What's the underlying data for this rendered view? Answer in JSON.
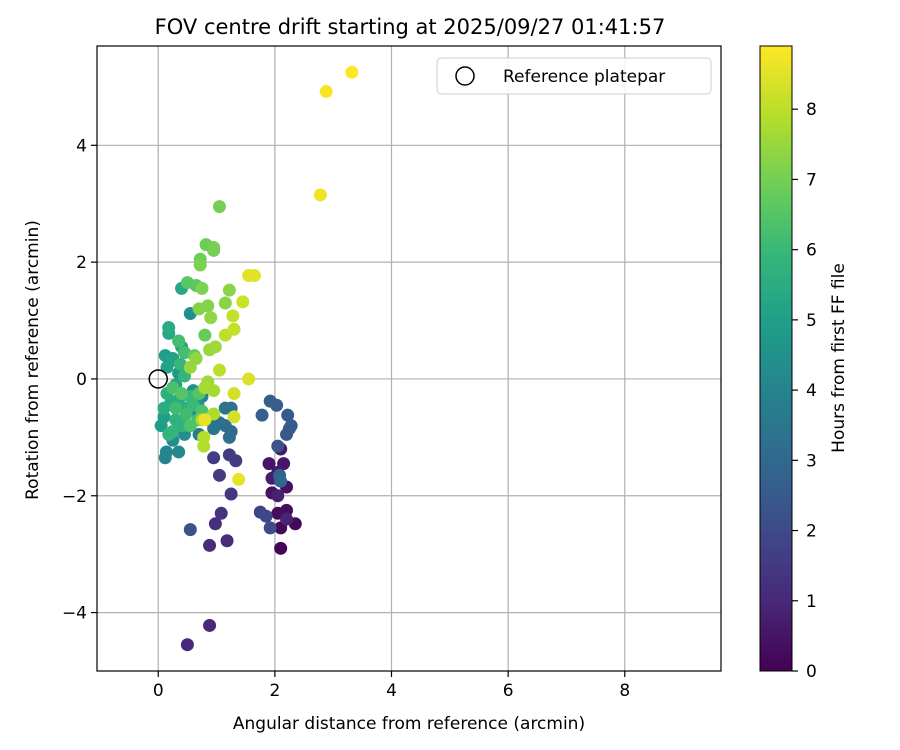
{
  "chart_data": {
    "type": "scatter",
    "title": "FOV centre drift starting at 2025/09/27 01:41:57",
    "xlabel": "Angular distance from reference (arcmin)",
    "ylabel": "Rotation from reference (arcmin)",
    "xlim": [
      -1.05,
      9.65
    ],
    "ylim": [
      -5.0,
      5.7
    ],
    "xticks": [
      0,
      2,
      4,
      6,
      8
    ],
    "xtick_labels": [
      "0",
      "2",
      "4",
      "6",
      "8"
    ],
    "yticks": [
      -4,
      -2,
      0,
      2,
      4
    ],
    "ytick_labels": [
      "−4",
      "−2",
      "0",
      "2",
      "4"
    ],
    "grid": true,
    "legend": {
      "position": "top-right",
      "entries": [
        "Reference platepar"
      ]
    },
    "reference_point": {
      "x": 0,
      "y": 0
    },
    "colorbar": {
      "label": "Hours from first FF file",
      "range": [
        0,
        8.9
      ],
      "ticks": [
        0,
        1,
        2,
        3,
        4,
        5,
        6,
        7,
        8
      ],
      "tick_labels": [
        "0",
        "1",
        "2",
        "3",
        "4",
        "5",
        "6",
        "7",
        "8"
      ],
      "colormap": "viridis",
      "colormap_stops": [
        "#440154",
        "#482878",
        "#3e4a89",
        "#31688e",
        "#26828e",
        "#1f9e89",
        "#35b779",
        "#6ece58",
        "#b5de2b",
        "#fde725"
      ]
    },
    "series": [
      {
        "name": "FF files",
        "points": [
          {
            "x": 2.1,
            "y": -2.9,
            "t": 0.1
          },
          {
            "x": 2.35,
            "y": -2.48,
            "t": 0.2
          },
          {
            "x": 2.1,
            "y": -2.55,
            "t": 0.2
          },
          {
            "x": 2.2,
            "y": -2.25,
            "t": 0.3
          },
          {
            "x": 2.05,
            "y": -2.3,
            "t": 0.3
          },
          {
            "x": 1.95,
            "y": -1.95,
            "t": 0.4
          },
          {
            "x": 2.2,
            "y": -1.85,
            "t": 0.4
          },
          {
            "x": 1.9,
            "y": -1.45,
            "t": 0.5
          },
          {
            "x": 2.15,
            "y": -1.45,
            "t": 0.5
          },
          {
            "x": 2.1,
            "y": -1.2,
            "t": 0.6
          },
          {
            "x": 2.05,
            "y": -1.6,
            "t": 0.6
          },
          {
            "x": 1.95,
            "y": -1.7,
            "t": 0.7
          },
          {
            "x": 2.05,
            "y": -2.0,
            "t": 0.8
          },
          {
            "x": 2.2,
            "y": -2.4,
            "t": 0.9
          },
          {
            "x": 0.5,
            "y": -4.55,
            "t": 1.0
          },
          {
            "x": 0.88,
            "y": -4.22,
            "t": 1.0
          },
          {
            "x": 0.88,
            "y": -2.85,
            "t": 1.1
          },
          {
            "x": 1.18,
            "y": -2.77,
            "t": 1.1
          },
          {
            "x": 0.98,
            "y": -2.48,
            "t": 1.2
          },
          {
            "x": 1.08,
            "y": -2.3,
            "t": 1.3
          },
          {
            "x": 1.25,
            "y": -1.97,
            "t": 1.4
          },
          {
            "x": 1.05,
            "y": -1.65,
            "t": 1.5
          },
          {
            "x": 1.33,
            "y": -1.4,
            "t": 1.5
          },
          {
            "x": 0.95,
            "y": -1.35,
            "t": 1.6
          },
          {
            "x": 1.22,
            "y": -1.3,
            "t": 1.6
          },
          {
            "x": 1.75,
            "y": -2.28,
            "t": 1.8
          },
          {
            "x": 1.85,
            "y": -2.35,
            "t": 1.9
          },
          {
            "x": 1.92,
            "y": -2.55,
            "t": 2.0
          },
          {
            "x": 0.55,
            "y": -2.58,
            "t": 2.2
          },
          {
            "x": 2.05,
            "y": -1.15,
            "t": 2.3
          },
          {
            "x": 2.2,
            "y": -0.95,
            "t": 2.4
          },
          {
            "x": 2.25,
            "y": -0.85,
            "t": 2.4
          },
          {
            "x": 2.28,
            "y": -0.8,
            "t": 2.5
          },
          {
            "x": 2.22,
            "y": -0.62,
            "t": 2.5
          },
          {
            "x": 1.92,
            "y": -0.38,
            "t": 2.6
          },
          {
            "x": 2.03,
            "y": -0.45,
            "t": 2.6
          },
          {
            "x": 1.78,
            "y": -0.62,
            "t": 2.7
          },
          {
            "x": 2.08,
            "y": -1.65,
            "t": 2.8
          },
          {
            "x": 2.1,
            "y": -1.75,
            "t": 2.9
          },
          {
            "x": 1.25,
            "y": -0.9,
            "t": 3.0
          },
          {
            "x": 1.15,
            "y": -0.8,
            "t": 3.1
          },
          {
            "x": 1.22,
            "y": -1.0,
            "t": 3.2
          },
          {
            "x": 1.05,
            "y": -0.75,
            "t": 3.2
          },
          {
            "x": 1.25,
            "y": -0.5,
            "t": 3.3
          },
          {
            "x": 1.15,
            "y": -0.5,
            "t": 3.4
          },
          {
            "x": 0.95,
            "y": -0.85,
            "t": 3.5
          },
          {
            "x": 0.7,
            "y": -0.95,
            "t": 3.6
          },
          {
            "x": 0.85,
            "y": -0.7,
            "t": 3.7
          },
          {
            "x": 0.62,
            "y": -0.55,
            "t": 3.8
          },
          {
            "x": 0.75,
            "y": -0.3,
            "t": 3.9
          },
          {
            "x": 0.12,
            "y": -1.35,
            "t": 4.0
          },
          {
            "x": 0.14,
            "y": -1.25,
            "t": 4.1
          },
          {
            "x": 0.35,
            "y": -1.25,
            "t": 4.2
          },
          {
            "x": 0.25,
            "y": -1.05,
            "t": 4.3
          },
          {
            "x": 0.45,
            "y": -0.95,
            "t": 4.4
          },
          {
            "x": 0.55,
            "y": 1.12,
            "t": 4.4
          },
          {
            "x": 0.6,
            "y": -0.2,
            "t": 4.5
          },
          {
            "x": 0.68,
            "y": -0.45,
            "t": 4.6
          },
          {
            "x": 0.8,
            "y": -0.15,
            "t": 4.7
          },
          {
            "x": 0.35,
            "y": 0.1,
            "t": 4.7
          },
          {
            "x": 0.2,
            "y": 0.3,
            "t": 4.8
          },
          {
            "x": 0.05,
            "y": -0.8,
            "t": 4.9
          },
          {
            "x": 0.1,
            "y": -0.65,
            "t": 5.0
          },
          {
            "x": 0.12,
            "y": 0.4,
            "t": 5.0
          },
          {
            "x": 0.15,
            "y": 0.2,
            "t": 5.1
          },
          {
            "x": 0.25,
            "y": 0.35,
            "t": 5.1
          },
          {
            "x": 0.3,
            "y": -0.1,
            "t": 5.2
          },
          {
            "x": 0.4,
            "y": 0.55,
            "t": 5.2
          },
          {
            "x": 0.18,
            "y": 0.78,
            "t": 5.3
          },
          {
            "x": 0.4,
            "y": 1.55,
            "t": 5.3
          },
          {
            "x": 0.18,
            "y": 0.88,
            "t": 5.4
          },
          {
            "x": 0.22,
            "y": -0.4,
            "t": 5.4
          },
          {
            "x": 0.35,
            "y": -0.35,
            "t": 5.5
          },
          {
            "x": 0.1,
            "y": -0.5,
            "t": 5.5
          },
          {
            "x": 0.15,
            "y": -0.25,
            "t": 5.6
          },
          {
            "x": 0.45,
            "y": -0.5,
            "t": 5.6
          },
          {
            "x": 0.3,
            "y": -0.7,
            "t": 5.7
          },
          {
            "x": 0.42,
            "y": -0.8,
            "t": 5.7
          },
          {
            "x": 0.25,
            "y": -0.9,
            "t": 5.8
          },
          {
            "x": 0.18,
            "y": -0.95,
            "t": 5.8
          },
          {
            "x": 0.45,
            "y": 0.05,
            "t": 5.9
          },
          {
            "x": 0.38,
            "y": 0.25,
            "t": 5.9
          },
          {
            "x": 0.55,
            "y": -0.3,
            "t": 6.0
          },
          {
            "x": 0.6,
            "y": -0.45,
            "t": 6.0
          },
          {
            "x": 0.3,
            "y": -0.5,
            "t": 6.1
          },
          {
            "x": 0.48,
            "y": -0.6,
            "t": 6.1
          },
          {
            "x": 0.35,
            "y": 0.65,
            "t": 6.2
          },
          {
            "x": 0.45,
            "y": 0.45,
            "t": 6.2
          },
          {
            "x": 0.25,
            "y": -0.15,
            "t": 6.3
          },
          {
            "x": 0.68,
            "y": -0.7,
            "t": 6.3
          },
          {
            "x": 0.55,
            "y": -0.8,
            "t": 6.4
          },
          {
            "x": 0.75,
            "y": -0.55,
            "t": 6.4
          },
          {
            "x": 0.7,
            "y": -0.25,
            "t": 6.5
          },
          {
            "x": 0.4,
            "y": -0.25,
            "t": 6.5
          },
          {
            "x": 0.5,
            "y": 1.65,
            "t": 6.6
          },
          {
            "x": 0.65,
            "y": 1.6,
            "t": 6.6
          },
          {
            "x": 0.62,
            "y": 0.4,
            "t": 6.7
          },
          {
            "x": 0.8,
            "y": 0.75,
            "t": 6.8
          },
          {
            "x": 0.72,
            "y": 2.05,
            "t": 6.9
          },
          {
            "x": 0.82,
            "y": 2.3,
            "t": 6.9
          },
          {
            "x": 0.95,
            "y": 2.25,
            "t": 7.0
          },
          {
            "x": 0.95,
            "y": 2.2,
            "t": 7.0
          },
          {
            "x": 1.05,
            "y": 2.95,
            "t": 7.0
          },
          {
            "x": 0.72,
            "y": 1.95,
            "t": 7.1
          },
          {
            "x": 0.75,
            "y": 1.55,
            "t": 7.1
          },
          {
            "x": 0.85,
            "y": 1.25,
            "t": 7.2
          },
          {
            "x": 0.7,
            "y": 1.2,
            "t": 7.2
          },
          {
            "x": 1.15,
            "y": 1.3,
            "t": 7.3
          },
          {
            "x": 1.22,
            "y": 1.52,
            "t": 7.3
          },
          {
            "x": 0.9,
            "y": 1.05,
            "t": 7.4
          },
          {
            "x": 0.65,
            "y": 0.35,
            "t": 7.4
          },
          {
            "x": 0.55,
            "y": 0.2,
            "t": 7.5
          },
          {
            "x": 0.88,
            "y": 0.5,
            "t": 7.5
          },
          {
            "x": 0.98,
            "y": 0.55,
            "t": 7.6
          },
          {
            "x": 0.85,
            "y": -0.05,
            "t": 7.6
          },
          {
            "x": 0.8,
            "y": -0.15,
            "t": 7.7
          },
          {
            "x": 0.95,
            "y": -0.2,
            "t": 7.7
          },
          {
            "x": 0.95,
            "y": -0.6,
            "t": 7.8
          },
          {
            "x": 0.75,
            "y": -0.7,
            "t": 7.8
          },
          {
            "x": 0.78,
            "y": -1.0,
            "t": 7.9
          },
          {
            "x": 0.78,
            "y": -1.15,
            "t": 7.9
          },
          {
            "x": 1.05,
            "y": 0.15,
            "t": 8.0
          },
          {
            "x": 1.15,
            "y": 0.75,
            "t": 8.0
          },
          {
            "x": 1.3,
            "y": 0.85,
            "t": 8.1
          },
          {
            "x": 1.28,
            "y": 1.08,
            "t": 8.1
          },
          {
            "x": 1.45,
            "y": 1.32,
            "t": 8.2
          },
          {
            "x": 1.3,
            "y": -0.25,
            "t": 8.3
          },
          {
            "x": 1.3,
            "y": -0.65,
            "t": 8.3
          },
          {
            "x": 1.55,
            "y": 0.0,
            "t": 8.4
          },
          {
            "x": 1.55,
            "y": 1.77,
            "t": 8.5
          },
          {
            "x": 1.65,
            "y": 1.77,
            "t": 8.5
          },
          {
            "x": 1.38,
            "y": -1.72,
            "t": 8.6
          },
          {
            "x": 0.8,
            "y": -0.7,
            "t": 8.6
          },
          {
            "x": 2.78,
            "y": 3.15,
            "t": 8.7
          },
          {
            "x": 2.88,
            "y": 4.92,
            "t": 8.8
          },
          {
            "x": 3.32,
            "y": 5.25,
            "t": 8.9
          }
        ]
      }
    ]
  }
}
